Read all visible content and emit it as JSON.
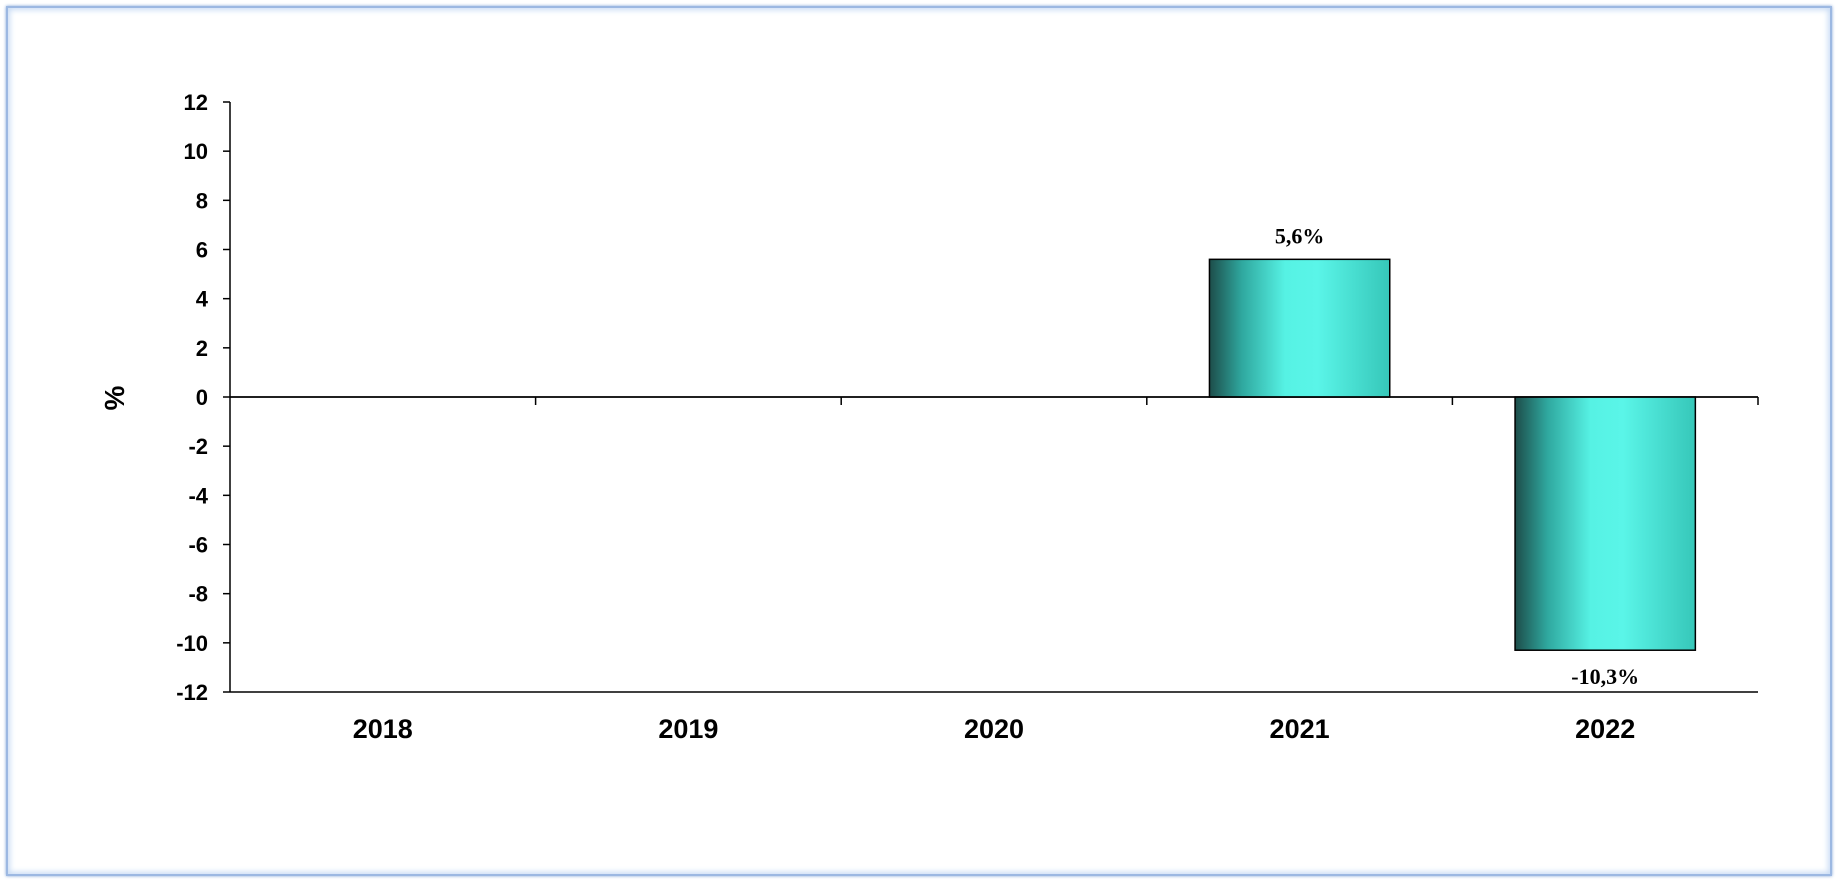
{
  "chart_data": {
    "type": "bar",
    "title": "",
    "ylabel": "%",
    "xlabel": "",
    "ylim": [
      -12,
      12
    ],
    "yticks": [
      12,
      10,
      8,
      6,
      4,
      2,
      0,
      -2,
      -4,
      -6,
      -8,
      -10,
      -12
    ],
    "categories": [
      "2018",
      "2019",
      "2020",
      "2021",
      "2022"
    ],
    "values": [
      null,
      null,
      null,
      5.6,
      -10.3
    ],
    "data_labels": [
      "",
      "",
      "",
      "5,6%",
      "-10,3%"
    ],
    "bar_color": "#40e0d0",
    "grid": false,
    "legend": "none"
  }
}
